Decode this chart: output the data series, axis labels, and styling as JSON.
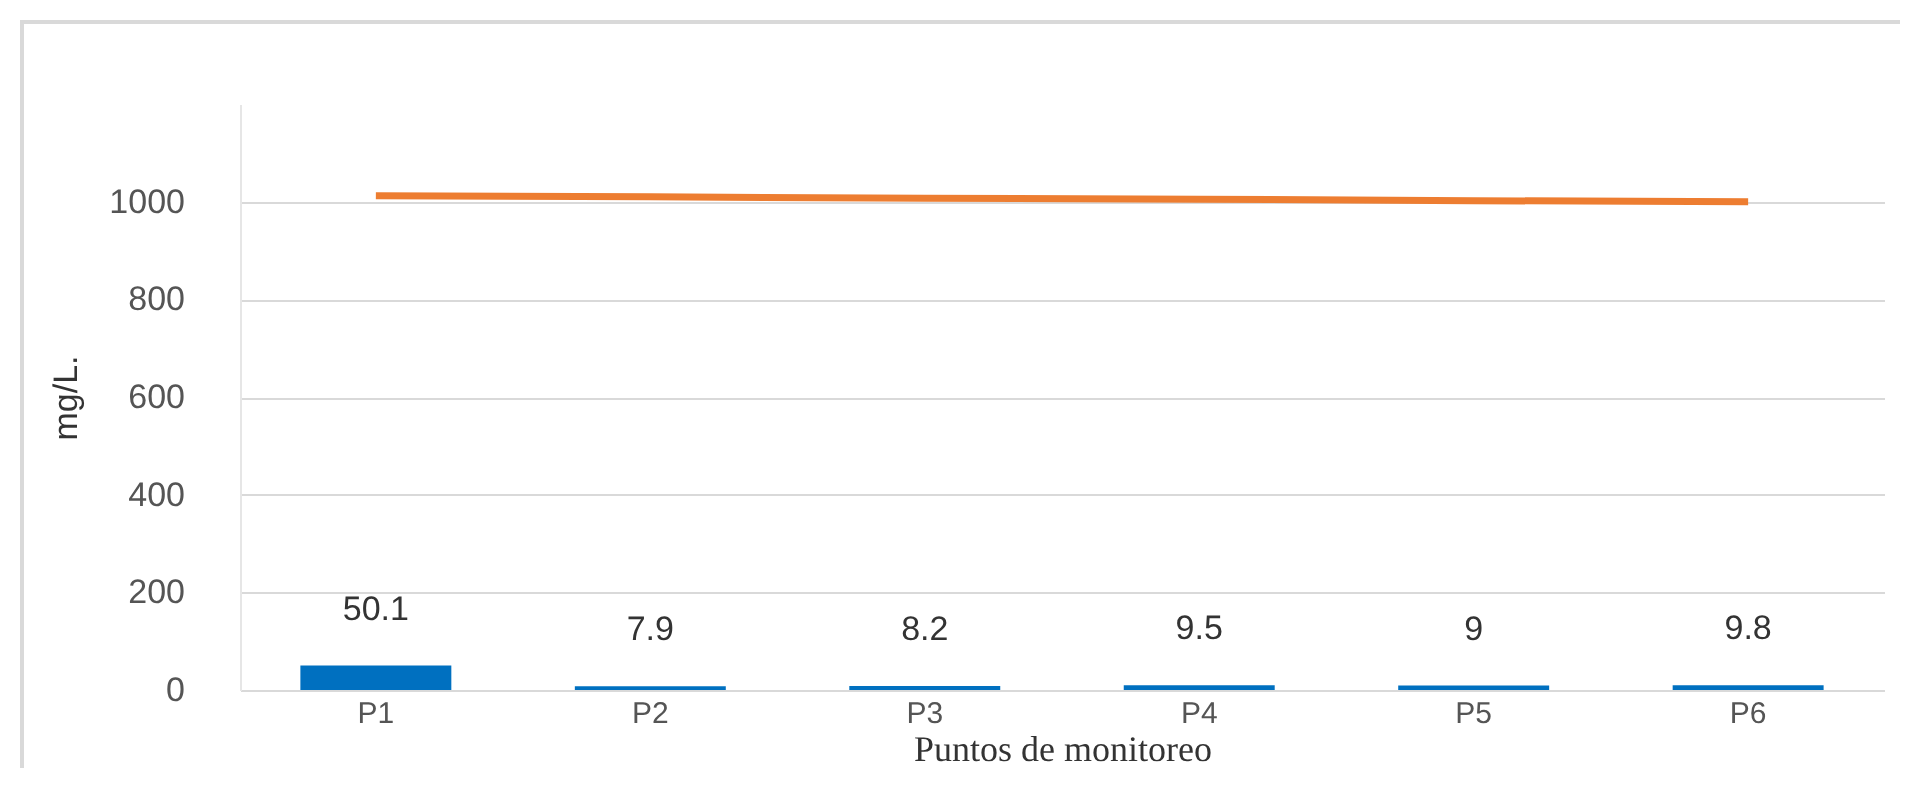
{
  "chart_data": {
    "type": "bar",
    "xlabel": "Puntos de monitoreo",
    "ylabel": "mg/L.",
    "categories": [
      "P1",
      "P2",
      "P3",
      "P4",
      "P5",
      "P6"
    ],
    "series": [
      {
        "color": "#0070c0",
        "values": [
          50.1,
          7.9,
          8.2,
          9.5,
          9,
          9.8
        ],
        "value_labels": [
          "50.1",
          "7.9",
          "8.2",
          "9.5",
          "9",
          "9.8"
        ]
      },
      {
        "type": "line",
        "color": "#ed7d31",
        "values": [
          1012,
          1010,
          1007,
          1005,
          1002,
          1000
        ]
      }
    ],
    "ylim": [
      0,
      1200
    ],
    "yticks": [
      0,
      200,
      400,
      600,
      800,
      1000
    ],
    "grid": "y"
  }
}
